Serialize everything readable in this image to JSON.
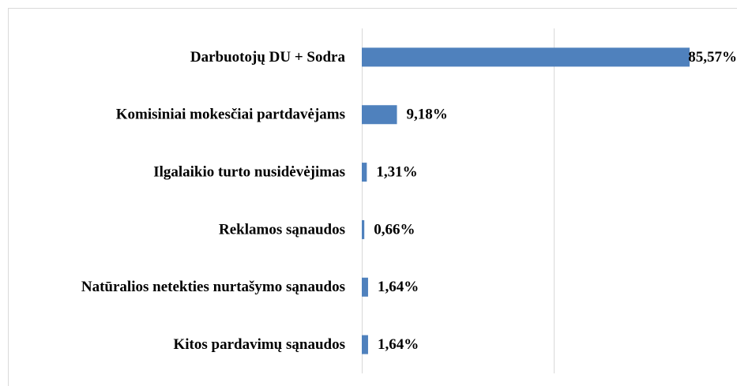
{
  "chart_data": {
    "type": "bar",
    "orientation": "horizontal",
    "categories": [
      "Darbuotojų DU + Sodra",
      "Komisiniai mokesčiai partdavėjams",
      "Ilgalaikio turto nusidėvėjimas",
      "Reklamos sąnaudos",
      "Natūralios netekties nurtašymo sąnaudos",
      "Kitos pardavimų sąnaudos"
    ],
    "values": [
      85.57,
      9.18,
      1.31,
      0.66,
      1.64,
      1.64
    ],
    "value_labels": [
      "85,57%",
      "9,18%",
      "1,31%",
      "0,66%",
      "1,64%",
      "1,64%"
    ],
    "color": "#4f81bd",
    "xlim": [
      0,
      100
    ],
    "gridlines": [
      0,
      50,
      100
    ],
    "grid": true
  }
}
